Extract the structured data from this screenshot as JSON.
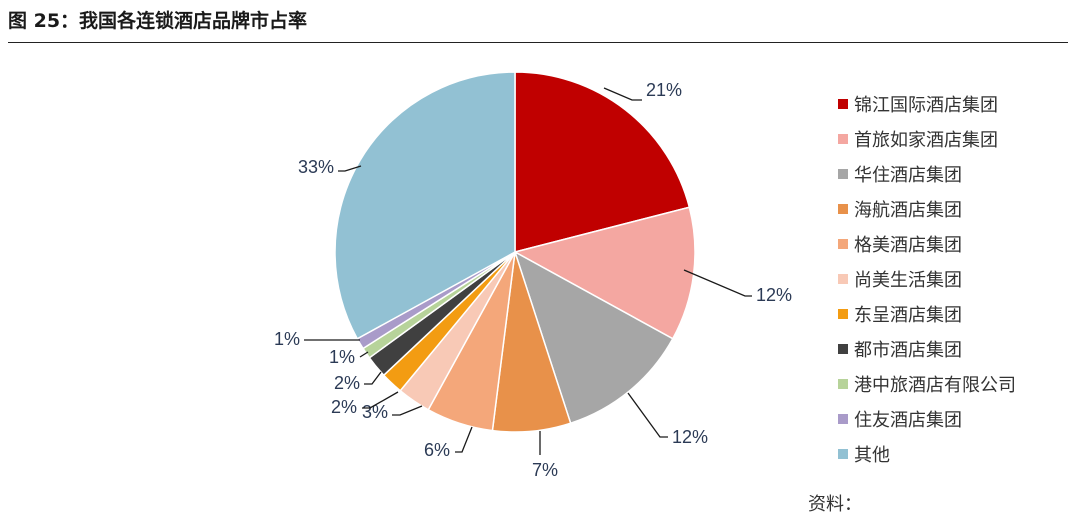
{
  "figure": {
    "title": "图 25：我国各连锁酒店品牌市占率"
  },
  "source_text": "资料：",
  "chart_data": {
    "type": "pie",
    "title": "",
    "legend_position": "right",
    "series": [
      {
        "name": "锦江国际酒店集团",
        "value": 21,
        "label": "21%",
        "color": "#C00000"
      },
      {
        "name": "首旅如家酒店集团",
        "value": 12,
        "label": "12%",
        "color": "#F4A7A1"
      },
      {
        "name": "华住酒店集团",
        "value": 12,
        "label": "12%",
        "color": "#A6A6A6"
      },
      {
        "name": "海航酒店集团",
        "value": 7,
        "label": "7%",
        "color": "#E8914A"
      },
      {
        "name": "格美酒店集团",
        "value": 6,
        "label": "6%",
        "color": "#F4A77A"
      },
      {
        "name": "尚美生活集团",
        "value": 3,
        "label": "3%",
        "color": "#F8C9B6"
      },
      {
        "name": "东呈酒店集团",
        "value": 2,
        "label": "2%",
        "color": "#F39C12"
      },
      {
        "name": "都市酒店集团",
        "value": 2,
        "label": "2%",
        "color": "#404040"
      },
      {
        "name": "港中旅酒店有限公司",
        "value": 1,
        "label": "1%",
        "color": "#B7D39A"
      },
      {
        "name": "住友酒店集团",
        "value": 1,
        "label": "1%",
        "color": "#A99BC9"
      },
      {
        "name": "其他",
        "value": 33,
        "label": "33%",
        "color": "#92C1D3"
      }
    ]
  }
}
